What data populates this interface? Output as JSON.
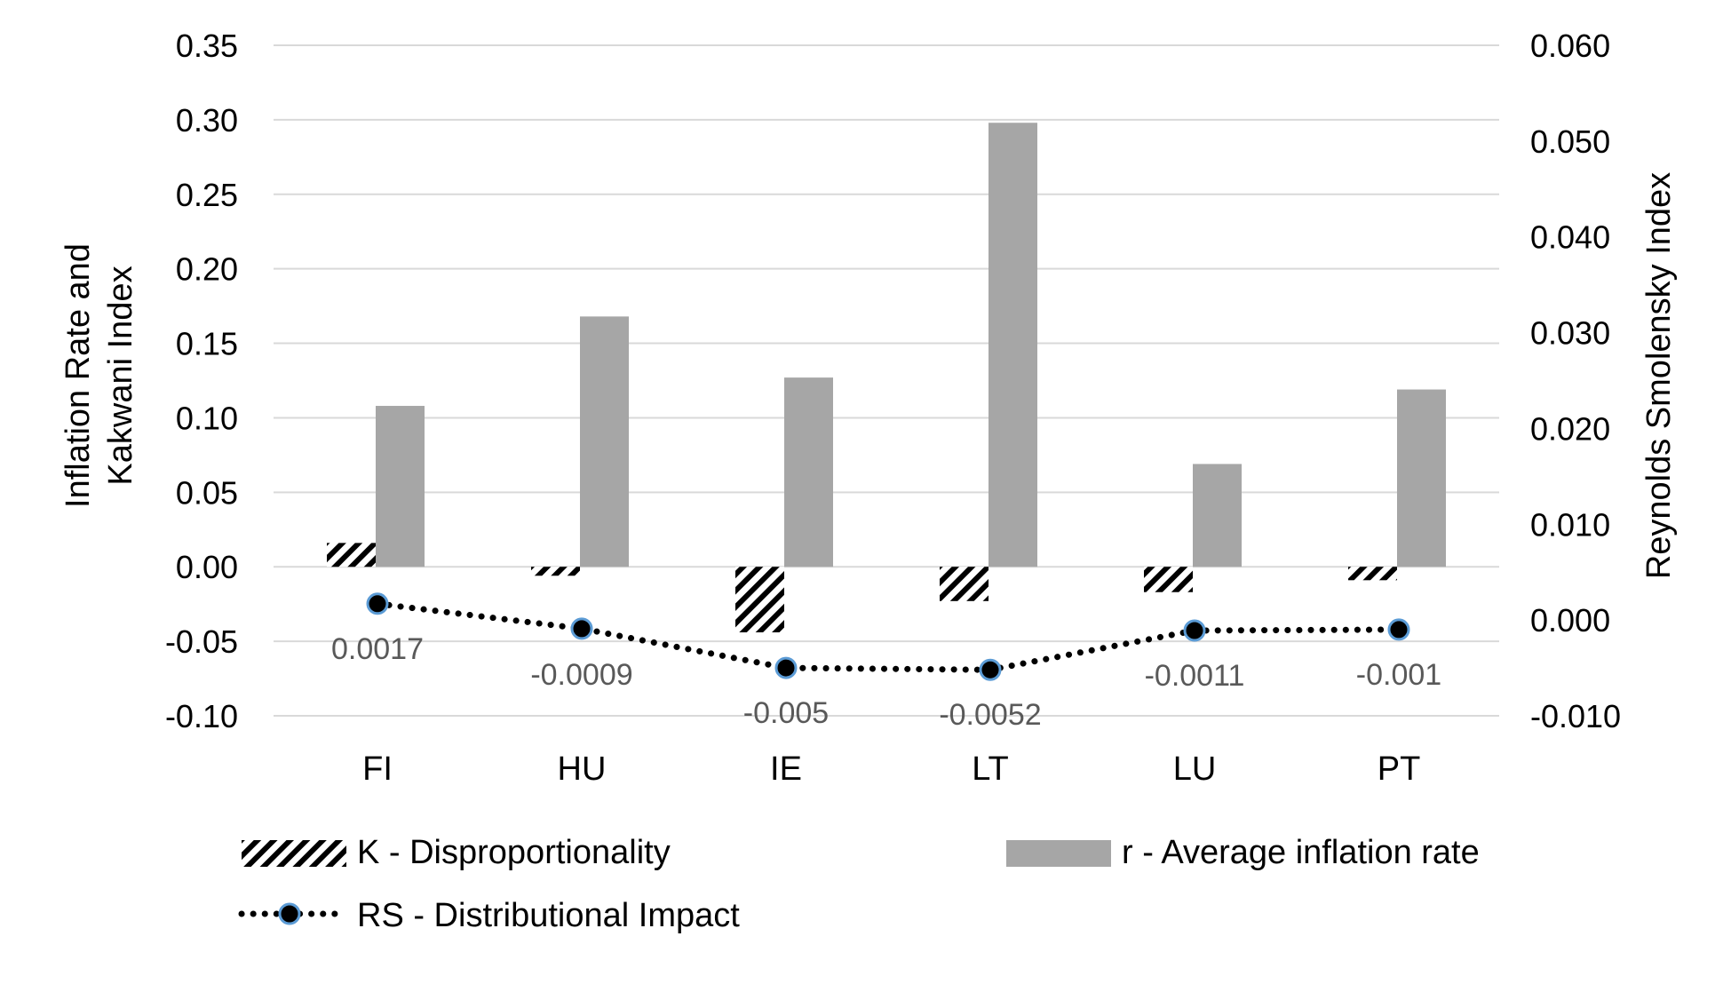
{
  "chart_data": {
    "type": "bar",
    "categories": [
      "FI",
      "HU",
      "IE",
      "LT",
      "LU",
      "PT"
    ],
    "ylabel": "Inflation Rate and Kakwani Index",
    "y2label": "Reynolds Smolensky Index",
    "ylim": [
      -0.1,
      0.35
    ],
    "yticks": [
      "0.35",
      "0.30",
      "0.25",
      "0.20",
      "0.15",
      "0.10",
      "0.05",
      "0.00",
      "-0.05",
      "-0.10"
    ],
    "y2lim": [
      -0.01,
      0.06
    ],
    "y2ticks": [
      "0.060",
      "0.050",
      "0.040",
      "0.030",
      "0.020",
      "0.010",
      "0.000",
      "-0.010"
    ],
    "grid": true,
    "legend_placement": "bottom",
    "series": [
      {
        "name": "K - Disproportionality",
        "kind": "bar",
        "axis": "left",
        "pattern": "diagonal-hatch",
        "values": [
          0.016,
          -0.006,
          -0.044,
          -0.023,
          -0.017,
          -0.009
        ]
      },
      {
        "name": "r - Average inflation rate",
        "kind": "bar",
        "axis": "left",
        "color": "#a6a6a6",
        "values": [
          0.108,
          0.168,
          0.127,
          0.298,
          0.069,
          0.119
        ]
      },
      {
        "name": "RS - Distributional Impact",
        "kind": "line",
        "axis": "right",
        "style": "dotted",
        "marker_fill": "#000000",
        "marker_edge": "#5b9bd5",
        "values": [
          0.0017,
          -0.0009,
          -0.005,
          -0.0052,
          -0.0011,
          -0.001
        ],
        "labels": [
          "0.0017",
          "-0.0009",
          "-0.005",
          "-0.0052",
          "-0.0011",
          "-0.001"
        ]
      }
    ]
  }
}
